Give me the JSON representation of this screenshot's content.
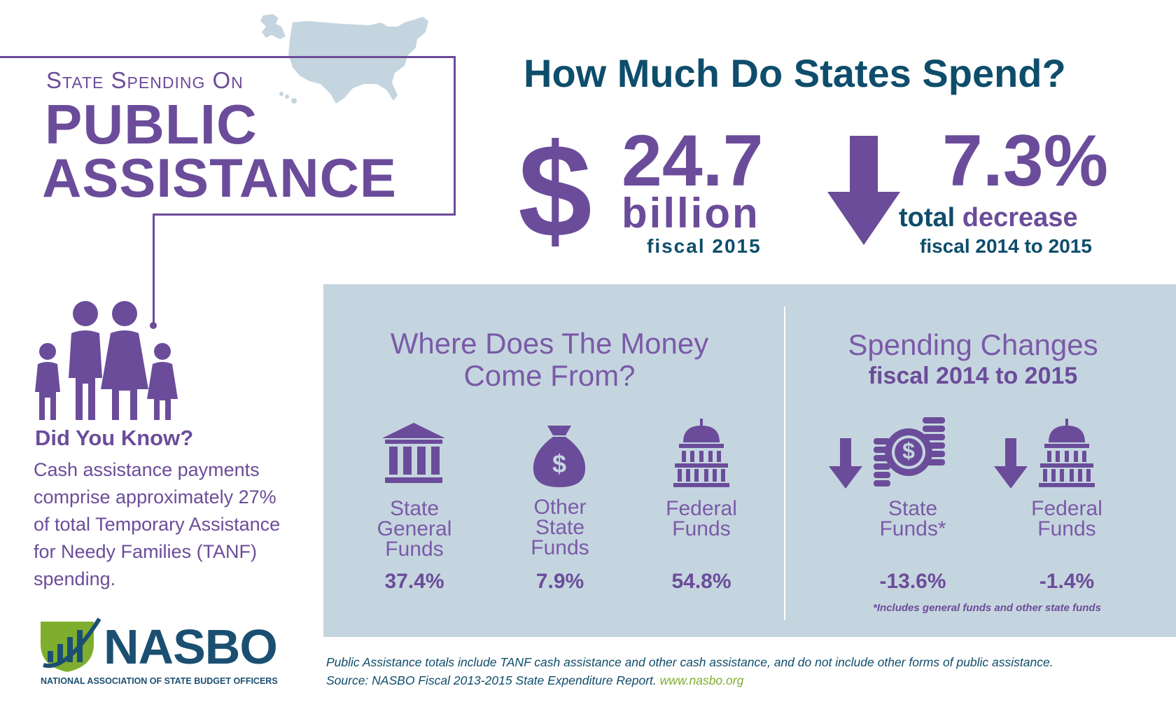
{
  "title": {
    "small": "State Spending On",
    "line1": "PUBLIC",
    "line2": "ASSISTANCE"
  },
  "main_heading": "How Much Do States Spend?",
  "spending": {
    "symbol": "$",
    "amount": "24.7",
    "unit": "billion",
    "period": "fiscal 2015"
  },
  "decrease": {
    "value": "7.3%",
    "label_part1": "total",
    "label_part2": "decrease",
    "period": "fiscal 2014 to 2015"
  },
  "money_source": {
    "title_line1": "Where Does The Money",
    "title_line2": "Come From?",
    "items": [
      {
        "label_lines": [
          "State",
          "General",
          "Funds"
        ],
        "value": "37.4%",
        "icon": "bank-icon"
      },
      {
        "label_lines": [
          "Other",
          "State",
          "Funds"
        ],
        "value": "7.9%",
        "icon": "money-bag-icon",
        "icon_glyph": "$"
      },
      {
        "label_lines": [
          "Federal",
          "Funds"
        ],
        "value": "54.8%",
        "icon": "capitol-icon"
      }
    ]
  },
  "spending_changes": {
    "title": "Spending Changes",
    "subtitle": "fiscal 2014 to 2015",
    "items": [
      {
        "label_lines": [
          "State",
          "Funds*"
        ],
        "value": "-13.6%",
        "icon": "coins-icon",
        "icon_glyph": "$"
      },
      {
        "label_lines": [
          "Federal",
          "Funds"
        ],
        "value": "-1.4%",
        "icon": "capitol-icon"
      }
    ],
    "footnote": "*Includes general funds and other state funds"
  },
  "did_you_know": {
    "heading": "Did You Know?",
    "body": "Cash assistance payments comprise approximately 27% of total Temporary Assistance for Needy Families (TANF) spending."
  },
  "logo": {
    "name": "NASBO",
    "full_name": "NATIONAL ASSOCIATION OF STATE BUDGET OFFICERS"
  },
  "footer": {
    "line1": "Public Assistance totals include TANF cash assistance and other cash assistance, and do not include other forms of public assistance.",
    "line2_prefix": "Source: NASBO Fiscal 2013-2015 State Expenditure Report.",
    "url": "www.nasbo.org"
  },
  "colors": {
    "purple": "#6b4c9a",
    "navy": "#0e4d6b",
    "panel": "#c5d5df",
    "map": "#c5d5df",
    "logo_green": "#7fae2e"
  }
}
